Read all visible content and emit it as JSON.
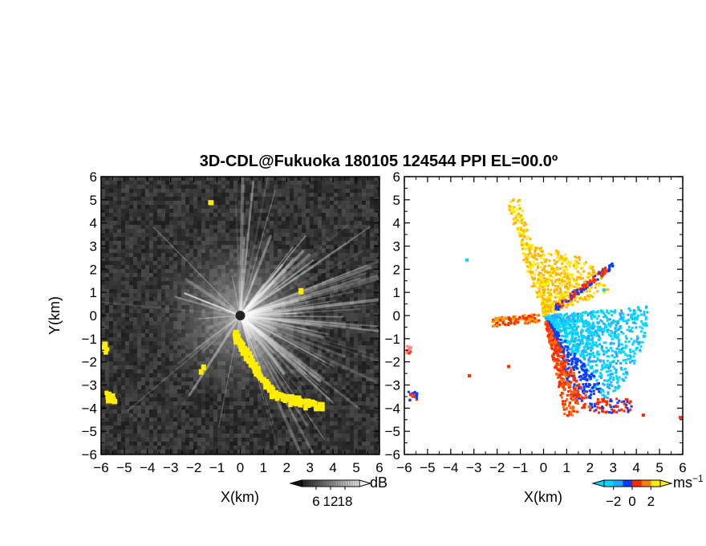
{
  "chart_data": {
    "title": "3D-CDL@Fukuoka 180105 124544 PPI EL=00.0º",
    "panels": [
      {
        "name": "reflectivity-panel",
        "type": "heatmap",
        "xlabel": "X(km)",
        "ylabel": "Y(km)",
        "xlim": [
          -6,
          6
        ],
        "ylim": [
          -6,
          6
        ],
        "xticks": [
          -6,
          -5,
          -4,
          -3,
          -2,
          -1,
          0,
          1,
          2,
          3,
          4,
          5,
          6
        ],
        "yticks": [
          -6,
          -5,
          -4,
          -3,
          -2,
          -1,
          0,
          1,
          2,
          3,
          4,
          5,
          6
        ],
        "background_color": "#2a2a2a",
        "highlight_color": "#ffee00",
        "colorbar": {
          "unit": "dB",
          "ticks": [
            6,
            12,
            18
          ],
          "range": [
            0,
            24
          ]
        }
      },
      {
        "name": "velocity-panel",
        "type": "heatmap",
        "xlabel": "X(km)",
        "ylabel": "",
        "xlim": [
          -6,
          6
        ],
        "ylim": [
          -6,
          6
        ],
        "xticks": [
          -6,
          -5,
          -4,
          -3,
          -2,
          -1,
          0,
          1,
          2,
          3,
          4,
          5,
          6
        ],
        "yticks": [
          -6,
          -5,
          -4,
          -3,
          -2,
          -1,
          0,
          1,
          2,
          3,
          4,
          5,
          6
        ],
        "colorbar": {
          "unit": "ms",
          "unit_exponent": "−1",
          "ticks": [
            -2,
            0,
            2
          ],
          "tick_labels": [
            "−2",
            "0",
            "2"
          ],
          "range": [
            -3,
            3
          ],
          "colors": [
            "#00d8ff",
            "#0a3cff",
            "#ff2a00",
            "#ffb400",
            "#ffee00"
          ]
        }
      }
    ],
    "tick_text": [
      "−6",
      "−5",
      "−4",
      "−3",
      "−2",
      "−1",
      "0",
      "1",
      "2",
      "3",
      "4",
      "5",
      "6"
    ]
  }
}
